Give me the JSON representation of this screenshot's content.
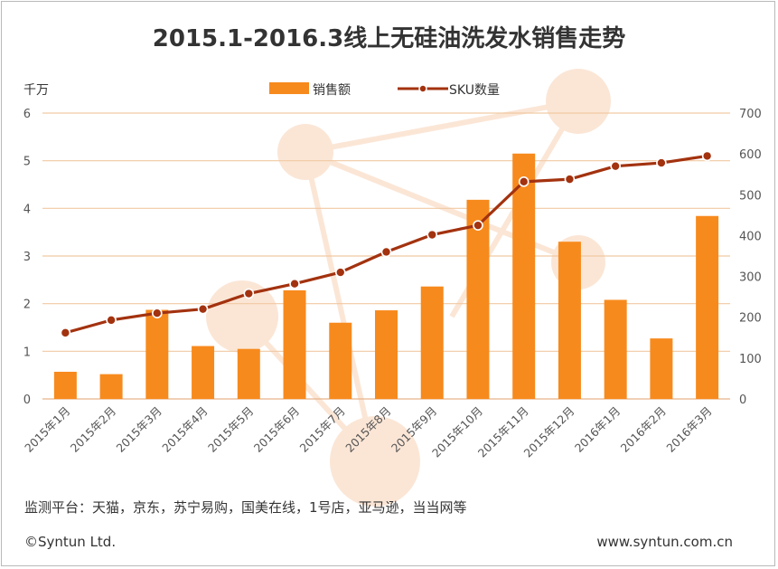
{
  "title": "2015.1-2016.3线上无硅油洗发水销售走势",
  "left_unit": "千万",
  "legend": {
    "bar": "销售额",
    "line": "SKU数量"
  },
  "footnote": "监测平台：天猫，京东，苏宁易购，国美在线，1号店，亚马逊，当当网等",
  "copyright": "©Syntun Ltd.",
  "website": "www.syntun.com.cn",
  "colors": {
    "bar": "#f78a1d",
    "line": "#a3320f",
    "grid": "#f1c9a3",
    "watermark": "#fbe6d6"
  },
  "chart_data": {
    "type": "bar+line",
    "title": "2015.1-2016.3线上无硅油洗发水销售走势",
    "categories": [
      "2015年1月",
      "2015年2月",
      "2015年3月",
      "2015年4月",
      "2015年5月",
      "2015年6月",
      "2015年7月",
      "2015年8月",
      "2015年9月",
      "2015年10月",
      "2015年11月",
      "2015年12月",
      "2016年1月",
      "2016年2月",
      "2016年3月"
    ],
    "series": [
      {
        "name": "销售额",
        "type": "bar",
        "axis": "left",
        "values": [
          0.57,
          0.52,
          1.87,
          1.11,
          1.05,
          2.28,
          1.6,
          1.86,
          2.36,
          4.18,
          5.15,
          3.3,
          2.08,
          1.27,
          3.84
        ]
      },
      {
        "name": "SKU数量",
        "type": "line",
        "axis": "right",
        "values": [
          162,
          193,
          210,
          220,
          258,
          282,
          310,
          360,
          402,
          425,
          532,
          538,
          570,
          578,
          595
        ]
      }
    ],
    "ylabel_left": "千万",
    "ylim_left": [
      0,
      6
    ],
    "yticks_left": [
      0,
      1,
      2,
      3,
      4,
      5,
      6
    ],
    "ylim_right": [
      0,
      700
    ],
    "yticks_right": [
      0,
      100,
      200,
      300,
      400,
      500,
      600,
      700
    ],
    "grid": true,
    "legend": "top-center"
  }
}
